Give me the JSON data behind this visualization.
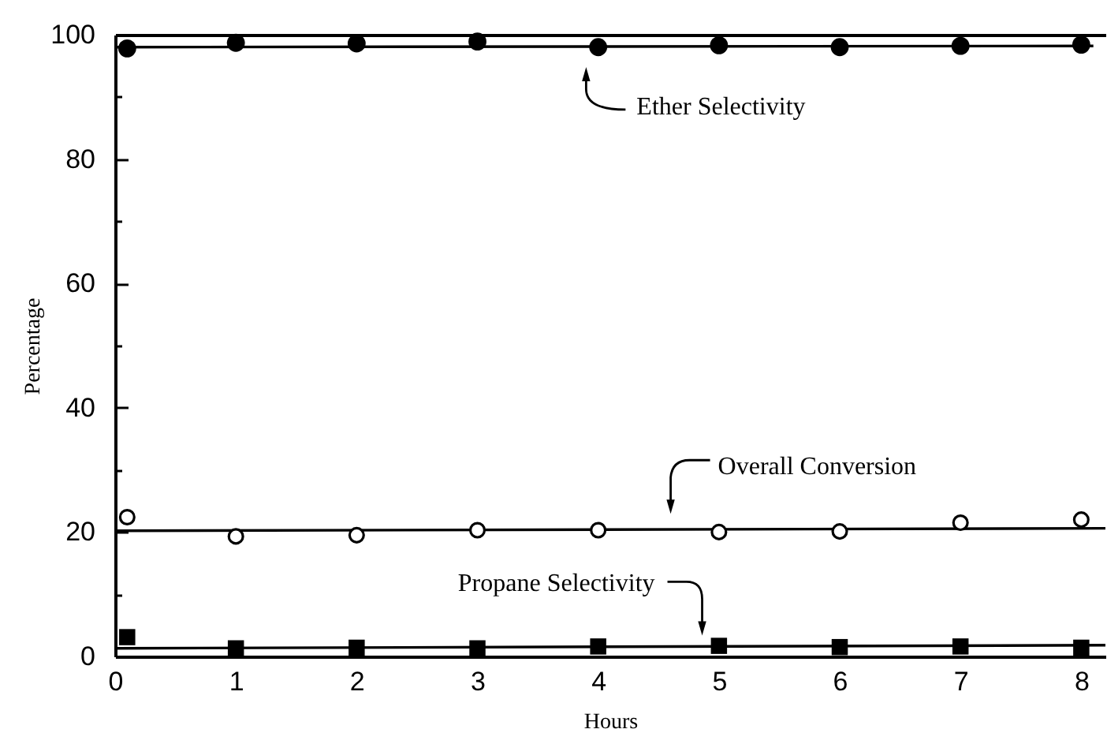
{
  "chart_data": {
    "type": "scatter",
    "xlabel": "Hours",
    "ylabel": "Percentage",
    "xlim": [
      0,
      8.2
    ],
    "ylim": [
      0,
      100
    ],
    "xticks": [
      0,
      1,
      2,
      3,
      4,
      5,
      6,
      7,
      8
    ],
    "yticks": [
      0,
      {
        "value": 10,
        "label": null
      },
      20,
      {
        "value": 30,
        "label": null
      },
      40,
      {
        "value": 50,
        "label": null
      },
      60,
      {
        "value": 70,
        "label": null
      },
      80,
      {
        "value": 90,
        "label": null
      },
      100
    ],
    "grid": false,
    "series": [
      {
        "type": "scatter",
        "color": "#000000",
        "marker": "circle",
        "x": [
          0.1,
          1,
          2,
          3,
          4,
          5,
          6,
          7,
          8
        ],
        "values": [
          97.8,
          98.7,
          98.6,
          98.9,
          98.0,
          98.3,
          98.0,
          98.2,
          98.4
        ]
      },
      {
        "type": "scatter",
        "color": "#000000",
        "marker": "circle",
        "x": [
          0.1,
          1,
          2,
          3,
          4,
          5,
          6,
          7,
          8
        ],
        "values": [
          22.4,
          19.3,
          19.5,
          20.3,
          20.3,
          20.0,
          20.1,
          21.5,
          22.0
        ]
      },
      {
        "type": "scatter",
        "color": "#000000",
        "marker": "square",
        "x": [
          0.1,
          1,
          2,
          3,
          4,
          5,
          6,
          7,
          8
        ],
        "values": [
          3.1,
          1.3,
          1.4,
          1.3,
          1.6,
          1.7,
          1.5,
          1.6,
          1.4
        ]
      },
      {
        "type": "line",
        "color": "#000000",
        "line_style": "solid",
        "x": [
          0,
          8.1
        ],
        "values": [
          98.0,
          98.2
        ]
      },
      {
        "type": "line",
        "color": "#000000",
        "line_style": "solid",
        "x": [
          0,
          8.2
        ],
        "values": [
          20.2,
          20.6
        ]
      },
      {
        "type": "line",
        "color": "#000000",
        "line_style": "solid",
        "x": [
          0,
          8.2
        ],
        "values": [
          1.3,
          1.8
        ]
      }
    ],
    "annotations": [
      {
        "text": "Ether Selectivity",
        "x": 3.9,
        "y": 98.1
      },
      {
        "text": "Overall Conversion",
        "x": 4.6,
        "y": 20.4
      },
      {
        "text": "Propane Selectivity",
        "x": 4.9,
        "y": 1.6
      }
    ]
  }
}
